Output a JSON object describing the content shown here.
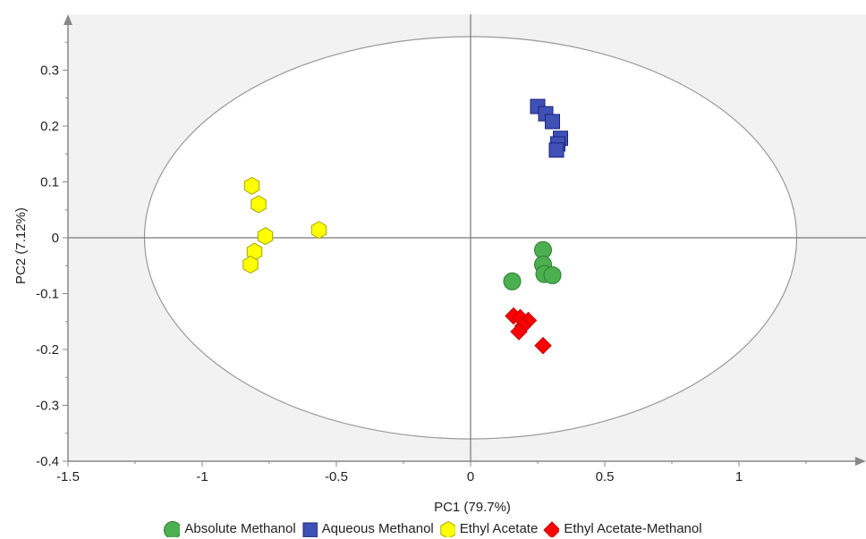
{
  "chart_data": {
    "type": "scatter",
    "xlabel": "PC1 (79.7%)",
    "ylabel": "PC2 (7.12%)",
    "xlim": [
      -1.5,
      1.45
    ],
    "ylim": [
      -0.4,
      0.4
    ],
    "x_ticks": [
      {
        "value": -1.5,
        "label": "-1.5"
      },
      {
        "value": -1,
        "label": "-1"
      },
      {
        "value": -0.5,
        "label": "-0.5"
      },
      {
        "value": 0,
        "label": "0"
      },
      {
        "value": 0.5,
        "label": "0.5"
      },
      {
        "value": 1,
        "label": "1"
      }
    ],
    "y_ticks": [
      {
        "value": -0.4,
        "label": "-0.4"
      },
      {
        "value": -0.3,
        "label": "-0.3"
      },
      {
        "value": -0.2,
        "label": "-0.2"
      },
      {
        "value": -0.1,
        "label": "-0.1"
      },
      {
        "value": 0,
        "label": "0"
      },
      {
        "value": 0.1,
        "label": "0.1"
      },
      {
        "value": 0.2,
        "label": "0.2"
      },
      {
        "value": 0.3,
        "label": "0.3"
      }
    ],
    "ellipse": {
      "cx": 0,
      "cy": 0,
      "rx": 1.215,
      "ry": 0.36
    },
    "legend_position": "bottom",
    "series": [
      {
        "name": "Absolute Methanol",
        "marker": "circle",
        "color": "#4caf50",
        "stroke": "#2e7d32",
        "points": [
          [
            0.27,
            -0.022
          ],
          [
            0.27,
            -0.048
          ],
          [
            0.275,
            -0.065
          ],
          [
            0.305,
            -0.067
          ],
          [
            0.155,
            -0.078
          ]
        ]
      },
      {
        "name": "Aqueous Methanol",
        "marker": "square",
        "color": "#3f51b5",
        "stroke": "#1a237e",
        "points": [
          [
            0.25,
            0.235
          ],
          [
            0.28,
            0.222
          ],
          [
            0.305,
            0.208
          ],
          [
            0.335,
            0.178
          ],
          [
            0.325,
            0.168
          ],
          [
            0.32,
            0.157
          ]
        ]
      },
      {
        "name": "Ethyl Acetate",
        "marker": "hexagon",
        "color": "#ffff00",
        "stroke": "#a6a600",
        "points": [
          [
            -0.815,
            0.093
          ],
          [
            -0.79,
            0.06
          ],
          [
            -0.765,
            0.003
          ],
          [
            -0.565,
            0.014
          ],
          [
            -0.805,
            -0.025
          ],
          [
            -0.82,
            -0.048
          ]
        ]
      },
      {
        "name": "Ethyl Acetate-Methanol",
        "marker": "diamond",
        "color": "#ff0000",
        "stroke": "#c00000",
        "points": [
          [
            0.16,
            -0.14
          ],
          [
            0.185,
            -0.143
          ],
          [
            0.215,
            -0.148
          ],
          [
            0.195,
            -0.158
          ],
          [
            0.18,
            -0.168
          ],
          [
            0.27,
            -0.193
          ]
        ]
      }
    ]
  }
}
